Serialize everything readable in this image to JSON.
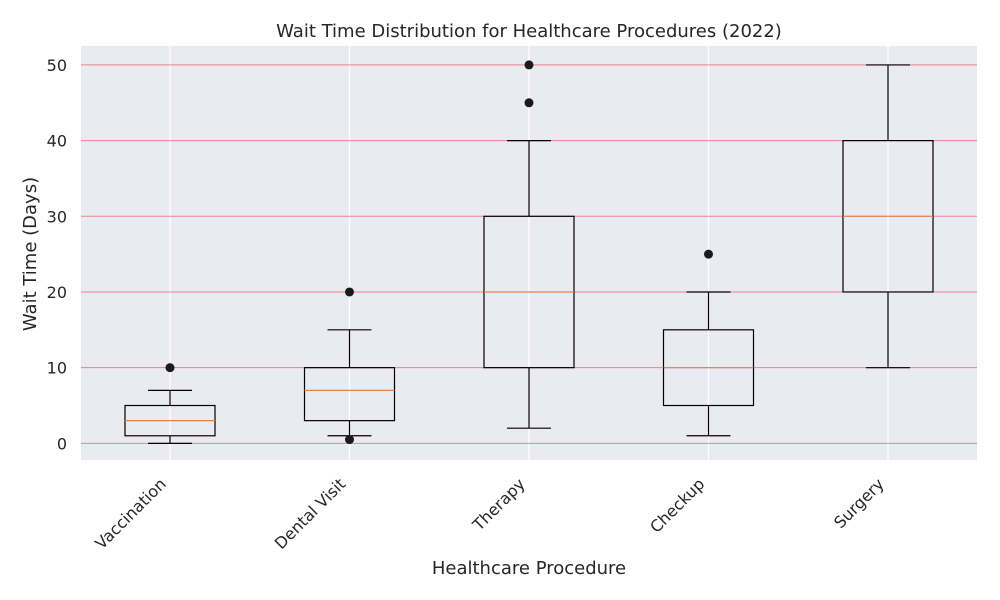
{
  "chart_data": {
    "type": "box",
    "title": "Wait Time Distribution for Healthcare Procedures (2022)",
    "xlabel": "Healthcare Procedure",
    "ylabel": "Wait Time (Days)",
    "ylim": [
      -2.2,
      52.5
    ],
    "yticks": [
      0,
      10,
      20,
      30,
      40,
      50
    ],
    "grid": true,
    "colors": {
      "plot_background": "#eaeaf2",
      "horizontal_grid": "#e8848c",
      "vertical_grid": "#ffffff",
      "box_stroke": "#000000",
      "median": "#dd8452",
      "outlier": "#1a1a1a"
    },
    "categories": [
      "Vaccination",
      "Dental Visit",
      "Therapy",
      "Checkup",
      "Surgery"
    ],
    "boxes": [
      {
        "category": "Vaccination",
        "whisker_low": 0,
        "q1": 1,
        "median": 3,
        "q3": 5,
        "whisker_high": 7,
        "outliers": [
          10
        ]
      },
      {
        "category": "Dental Visit",
        "whisker_low": 1,
        "q1": 3,
        "median": 7,
        "q3": 10,
        "whisker_high": 15,
        "outliers": [
          0.5,
          20
        ]
      },
      {
        "category": "Therapy",
        "whisker_low": 2,
        "q1": 10,
        "median": 20,
        "q3": 30,
        "whisker_high": 40,
        "outliers": [
          45,
          50
        ]
      },
      {
        "category": "Checkup",
        "whisker_low": 1,
        "q1": 5,
        "median": 10,
        "q3": 15,
        "whisker_high": 20,
        "outliers": [
          25
        ]
      },
      {
        "category": "Surgery",
        "whisker_low": 10,
        "q1": 20,
        "median": 30,
        "q3": 40,
        "whisker_high": 50,
        "outliers": []
      }
    ]
  }
}
